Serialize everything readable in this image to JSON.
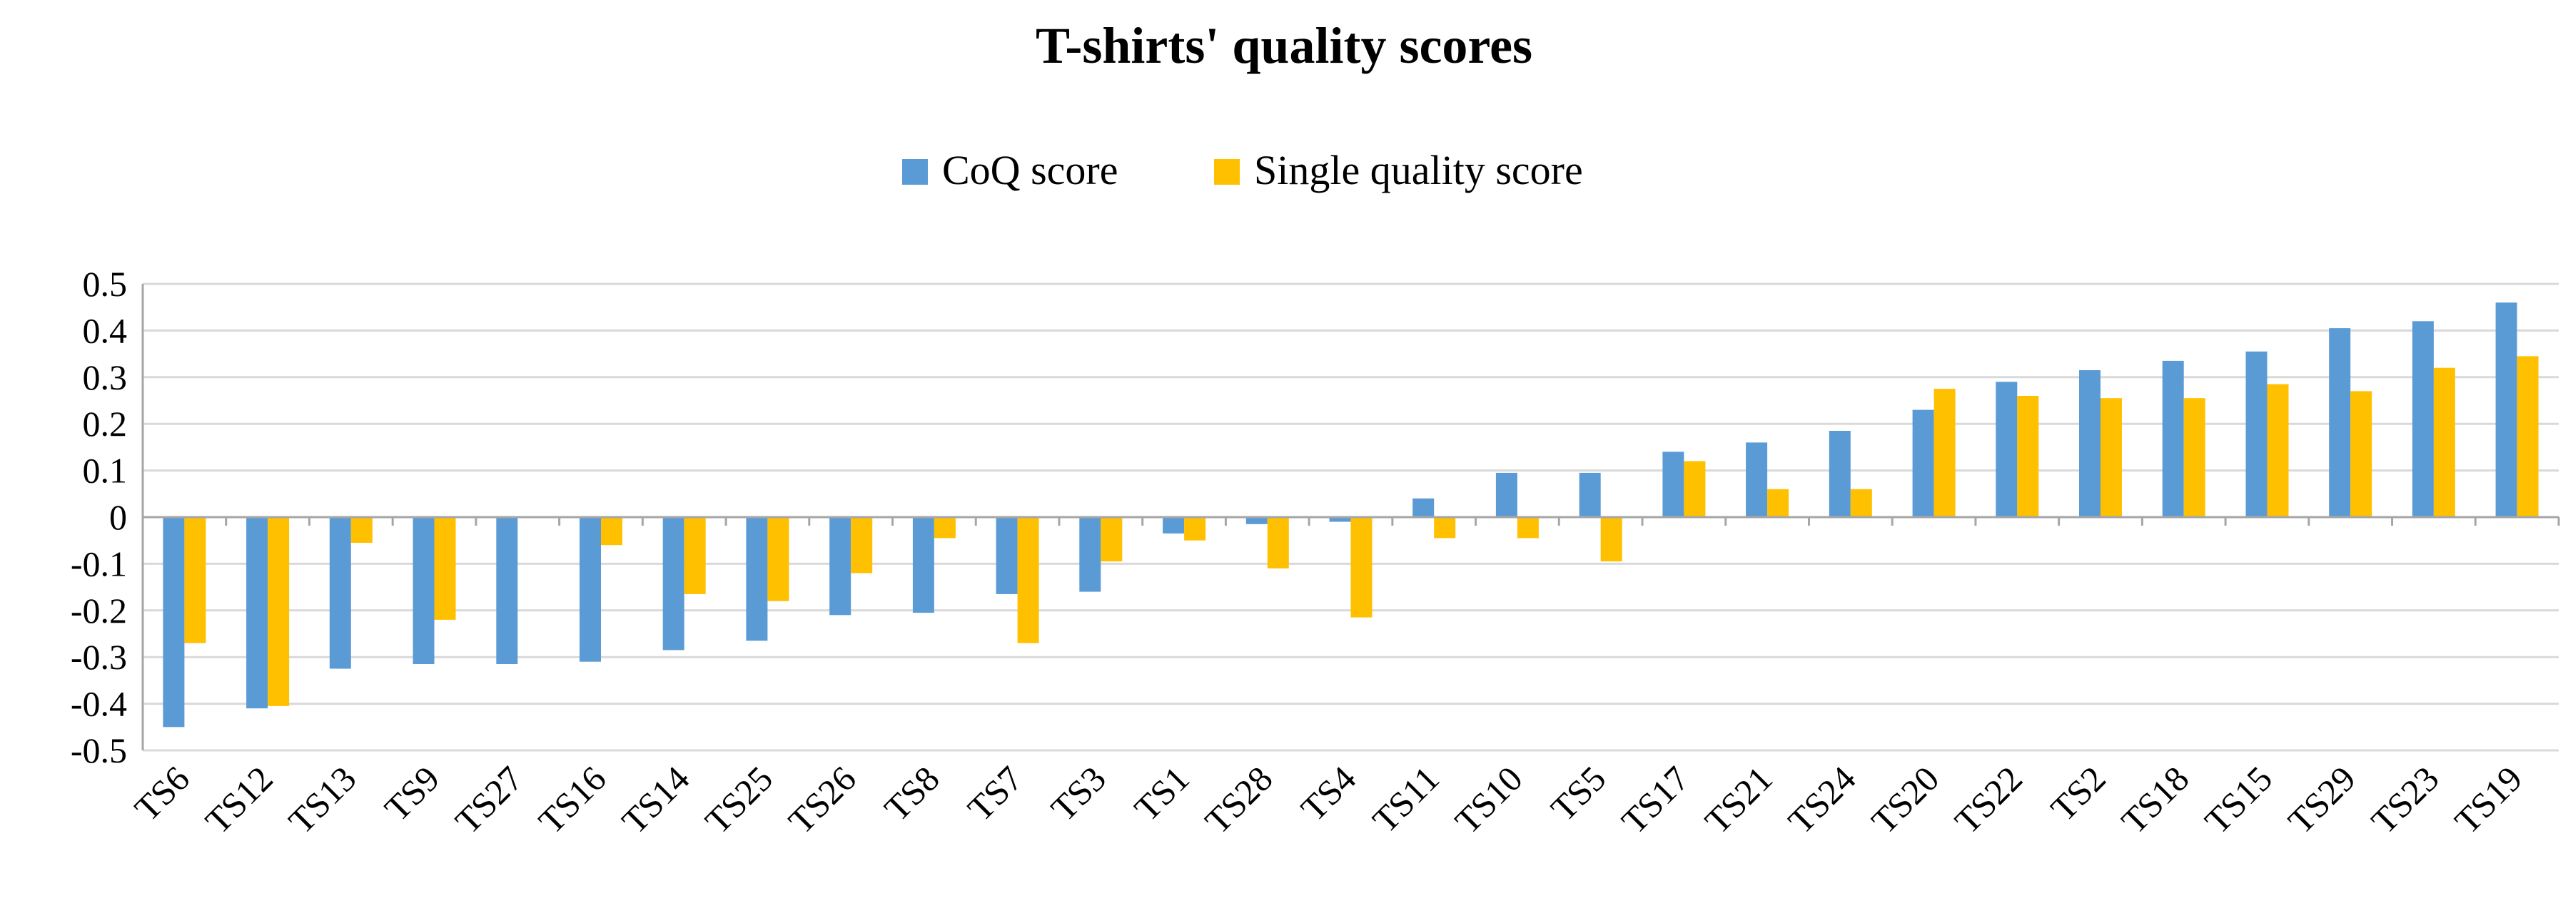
{
  "chart_data": {
    "type": "bar",
    "title": "T-shirts' quality scores",
    "xlabel": "",
    "ylabel": "",
    "ylim": [
      -0.5,
      0.5
    ],
    "yticks": [
      "0.5",
      "0.4",
      "0.3",
      "0.2",
      "0.1",
      "0",
      "-0.1",
      "-0.2",
      "-0.3",
      "-0.4",
      "-0.5"
    ],
    "ytick_values": [
      0.5,
      0.4,
      0.3,
      0.2,
      0.1,
      0,
      -0.1,
      -0.2,
      -0.3,
      -0.4,
      -0.5
    ],
    "grid": true,
    "legend_position": "top-center",
    "categories": [
      "TS6",
      "TS12",
      "TS13",
      "TS9",
      "TS27",
      "TS16",
      "TS14",
      "TS25",
      "TS26",
      "TS8",
      "TS7",
      "TS3",
      "TS1",
      "TS28",
      "TS4",
      "TS11",
      "TS10",
      "TS5",
      "TS17",
      "TS21",
      "TS24",
      "TS20",
      "TS22",
      "TS2",
      "TS18",
      "TS15",
      "TS29",
      "TS23",
      "TS19"
    ],
    "series": [
      {
        "name": "CoQ score",
        "color": "#5b9bd5",
        "values": [
          -0.45,
          -0.41,
          -0.325,
          -0.315,
          -0.315,
          -0.31,
          -0.285,
          -0.265,
          -0.21,
          -0.205,
          -0.165,
          -0.16,
          -0.035,
          -0.015,
          -0.01,
          0.04,
          0.095,
          0.095,
          0.14,
          0.16,
          0.185,
          0.23,
          0.29,
          0.315,
          0.335,
          0.355,
          0.405,
          0.42,
          0.46
        ]
      },
      {
        "name": "Single quality score",
        "color": "#ffc000",
        "values": [
          -0.27,
          -0.405,
          -0.055,
          -0.22,
          0,
          -0.06,
          -0.165,
          -0.18,
          -0.12,
          -0.045,
          -0.27,
          -0.095,
          -0.05,
          -0.11,
          -0.215,
          -0.045,
          -0.045,
          -0.095,
          0.12,
          0.06,
          0.06,
          0.275,
          0.26,
          0.255,
          0.255,
          0.285,
          0.27,
          0.32,
          0.345
        ]
      }
    ]
  }
}
